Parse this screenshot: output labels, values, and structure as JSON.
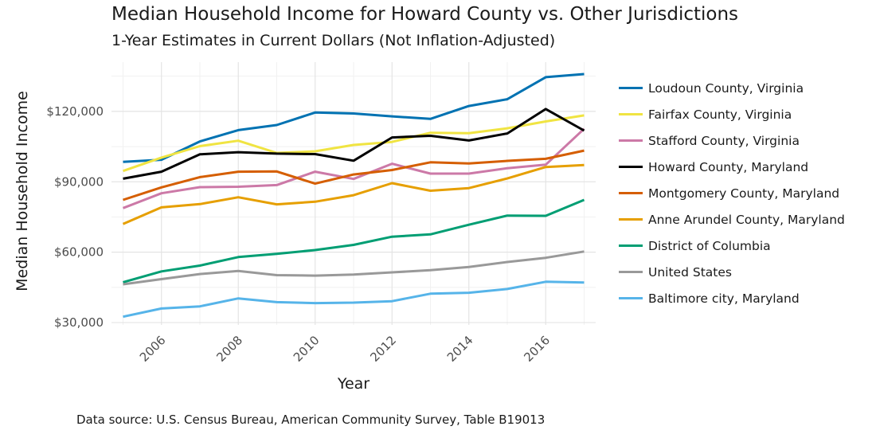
{
  "chart_data": {
    "type": "line",
    "title": "Median Household Income for Howard County vs. Other Jurisdictions",
    "subtitle": "1-Year Estimates in Current Dollars (Not Inflation-Adjusted)",
    "xlabel": "Year",
    "ylabel": "Median Household Income",
    "caption": "Data source: U.S. Census Bureau, American Community Survey, Table B19013",
    "xlim": [
      2004.7,
      2017.3
    ],
    "ylim": [
      29000,
      141000
    ],
    "x_ticks": [
      2006,
      2008,
      2010,
      2012,
      2014,
      2016
    ],
    "x_tick_labels": [
      "2006",
      "2008",
      "2010",
      "2012",
      "2014",
      "2016"
    ],
    "y_ticks": [
      30000,
      60000,
      90000,
      120000
    ],
    "y_tick_labels": [
      "$30,000",
      "$60,000",
      "$90,000",
      "$120,000"
    ],
    "grid": true,
    "legend_position": "right",
    "x": [
      2005,
      2006,
      2007,
      2008,
      2009,
      2010,
      2011,
      2012,
      2013,
      2014,
      2015,
      2016,
      2017
    ],
    "series": [
      {
        "name": "Loudoun County, Virginia",
        "color": "#0072B2",
        "values": [
          98500,
          99400,
          107200,
          112000,
          114200,
          119500,
          119100,
          117900,
          116800,
          122300,
          125200,
          134600,
          135900
        ]
      },
      {
        "name": "Fairfax County, Virginia",
        "color": "#F0E442",
        "values": [
          94600,
          100300,
          105200,
          107500,
          102300,
          103000,
          105700,
          107000,
          110900,
          110700,
          112800,
          115700,
          118300
        ]
      },
      {
        "name": "Stafford County, Virginia",
        "color": "#CC79A7",
        "values": [
          78800,
          85100,
          87700,
          87900,
          88600,
          94300,
          91200,
          97700,
          93500,
          93500,
          95800,
          97300,
          112600
        ]
      },
      {
        "name": "Howard County, Maryland",
        "color": "#000000",
        "values": [
          91300,
          94300,
          101700,
          102600,
          102000,
          101800,
          99000,
          108900,
          109600,
          107600,
          110600,
          121000,
          111800
        ]
      },
      {
        "name": "Montgomery County, Maryland",
        "color": "#D55E00",
        "values": [
          82300,
          87600,
          92000,
          94300,
          94400,
          89200,
          93100,
          95000,
          98300,
          97800,
          98900,
          99800,
          103300
        ]
      },
      {
        "name": "Anne Arundel County, Maryland",
        "color": "#E69F00",
        "values": [
          72000,
          79100,
          80500,
          83400,
          80400,
          81500,
          84300,
          89400,
          86200,
          87300,
          91400,
          96300,
          97100
        ]
      },
      {
        "name": "District of Columbia",
        "color": "#009E73",
        "values": [
          47200,
          51800,
          54300,
          57900,
          59300,
          60900,
          63100,
          66600,
          67600,
          71700,
          75600,
          75500,
          82300
        ]
      },
      {
        "name": "United States",
        "color": "#999999",
        "values": [
          46300,
          48500,
          50700,
          52000,
          50200,
          50000,
          50500,
          51400,
          52300,
          53700,
          55800,
          57600,
          60300
        ]
      },
      {
        "name": "Baltimore city, Maryland",
        "color": "#56B4E9",
        "values": [
          32500,
          36000,
          36900,
          40300,
          38700,
          38300,
          38500,
          39100,
          42300,
          42700,
          44300,
          47400,
          47100
        ]
      }
    ]
  }
}
